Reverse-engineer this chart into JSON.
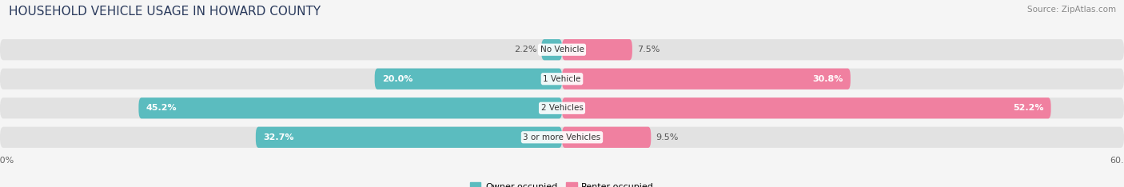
{
  "title": "HOUSEHOLD VEHICLE USAGE IN HOWARD COUNTY",
  "source": "Source: ZipAtlas.com",
  "categories": [
    "No Vehicle",
    "1 Vehicle",
    "2 Vehicles",
    "3 or more Vehicles"
  ],
  "owner_values": [
    2.2,
    20.0,
    45.2,
    32.7
  ],
  "renter_values": [
    7.5,
    30.8,
    52.2,
    9.5
  ],
  "owner_color": "#5bbcbf",
  "renter_color": "#f080a0",
  "owner_label": "Owner-occupied",
  "renter_label": "Renter-occupied",
  "xlim": [
    -60,
    60
  ],
  "background_color": "#f5f5f5",
  "bar_bg_color": "#e2e2e2",
  "title_fontsize": 11,
  "source_fontsize": 7.5,
  "label_fontsize": 8,
  "category_fontsize": 7.5,
  "legend_fontsize": 8,
  "value_label_color_inside": "#ffffff",
  "value_label_color_outside": "#555555"
}
